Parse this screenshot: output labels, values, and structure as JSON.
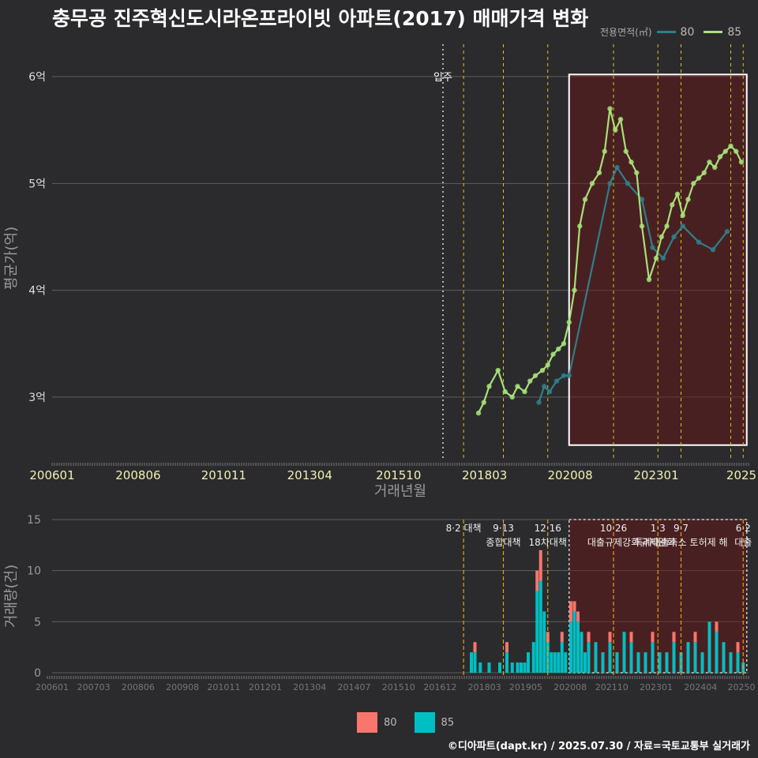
{
  "title": "충무공 진주혁신도시라온프라이빗 아파트(2017) 매매가격 변화",
  "legend": {
    "title": "전용면적(㎡)",
    "items": [
      {
        "label": "80",
        "color": "#2f7f8a"
      },
      {
        "label": "85",
        "color": "#a8e07a"
      }
    ]
  },
  "bottom_legend": [
    {
      "label": "80",
      "color": "#f8766d"
    },
    {
      "label": "85",
      "color": "#00bfc4"
    }
  ],
  "credit": "©디아파트(dapt.kr) / 2025.07.30 / 자료=국토교통부 실거래가",
  "chart_data": [
    {
      "type": "line",
      "title": "충무공 진주혁신도시라온프라이빗 아파트(2017) 매매가격 변화",
      "xlabel": "거래년월",
      "ylabel": "평균가(억)",
      "xlim": [
        2006.0,
        2025.6
      ],
      "ylim": [
        2.4,
        6.2
      ],
      "x_ticks": [
        {
          "v": 2006.0,
          "label": "200601"
        },
        {
          "v": 2008.42,
          "label": "200806"
        },
        {
          "v": 2010.83,
          "label": "201011"
        },
        {
          "v": 2013.25,
          "label": "201304"
        },
        {
          "v": 2015.75,
          "label": "201510"
        },
        {
          "v": 2018.17,
          "label": "201803"
        },
        {
          "v": 2020.58,
          "label": "202008"
        },
        {
          "v": 2023.0,
          "label": "202301"
        },
        {
          "v": 2025.4,
          "label": "2025"
        }
      ],
      "y_ticks": [
        {
          "v": 3,
          "label": "3억"
        },
        {
          "v": 4,
          "label": "4억"
        },
        {
          "v": 5,
          "label": "5억"
        },
        {
          "v": 6,
          "label": "6억"
        }
      ],
      "annotation": {
        "x": 2017.0,
        "label": "입주"
      },
      "policy_lines": [
        2017.58,
        2018.7,
        2019.95,
        2021.8,
        2023.05,
        2023.7,
        2025.1,
        2025.45
      ],
      "highlight": {
        "x0": 2020.55,
        "x1": 2025.55,
        "y0": 2.55,
        "y1": 6.02
      },
      "series": [
        {
          "name": "80",
          "color": "#2f7f8a",
          "x": [
            2019.7,
            2019.85,
            2020.0,
            2020.2,
            2020.4,
            2020.55,
            2021.7,
            2021.9,
            2022.2,
            2022.6,
            2022.9,
            2023.2,
            2023.5,
            2023.75,
            2024.2,
            2024.6,
            2025.0
          ],
          "y": [
            2.95,
            3.1,
            3.05,
            3.15,
            3.2,
            3.2,
            5.0,
            5.15,
            5.0,
            4.85,
            4.4,
            4.3,
            4.5,
            4.6,
            4.45,
            4.38,
            4.55
          ]
        },
        {
          "name": "85",
          "color": "#a8e07a",
          "x": [
            2018.0,
            2018.15,
            2018.3,
            2018.55,
            2018.75,
            2018.95,
            2019.1,
            2019.3,
            2019.45,
            2019.6,
            2019.8,
            2019.95,
            2020.1,
            2020.25,
            2020.4,
            2020.55,
            2020.7,
            2020.85,
            2021.0,
            2021.2,
            2021.4,
            2021.55,
            2021.7,
            2021.85,
            2022.0,
            2022.15,
            2022.3,
            2022.45,
            2022.6,
            2022.8,
            2023.0,
            2023.15,
            2023.3,
            2023.45,
            2023.6,
            2023.75,
            2023.9,
            2024.05,
            2024.2,
            2024.35,
            2024.5,
            2024.65,
            2024.8,
            2024.95,
            2025.1,
            2025.25,
            2025.4
          ],
          "y": [
            2.85,
            2.95,
            3.1,
            3.25,
            3.05,
            3.0,
            3.1,
            3.05,
            3.15,
            3.2,
            3.25,
            3.3,
            3.4,
            3.45,
            3.5,
            3.7,
            4.0,
            4.6,
            4.85,
            5.0,
            5.1,
            5.3,
            5.7,
            5.5,
            5.6,
            5.3,
            5.2,
            5.1,
            4.6,
            4.1,
            4.3,
            4.5,
            4.6,
            4.8,
            4.9,
            4.7,
            4.85,
            5.0,
            5.05,
            5.1,
            5.2,
            5.15,
            5.25,
            5.3,
            5.35,
            5.3,
            5.2
          ]
        }
      ]
    },
    {
      "type": "bar",
      "stacked": true,
      "xlabel": "",
      "ylabel": "거래량(건)",
      "xlim": [
        2006.0,
        2025.6
      ],
      "ylim": [
        0,
        15
      ],
      "x_ticks": [
        {
          "v": 2006.0,
          "label": "200601"
        },
        {
          "v": 2007.17,
          "label": "200703"
        },
        {
          "v": 2008.42,
          "label": "200806"
        },
        {
          "v": 2009.67,
          "label": "200908"
        },
        {
          "v": 2010.83,
          "label": "201011"
        },
        {
          "v": 2012.0,
          "label": "201201"
        },
        {
          "v": 2013.25,
          "label": "201304"
        },
        {
          "v": 2014.5,
          "label": "201407"
        },
        {
          "v": 2015.75,
          "label": "201510"
        },
        {
          "v": 2016.92,
          "label": "201612"
        },
        {
          "v": 2018.17,
          "label": "201803"
        },
        {
          "v": 2019.33,
          "label": "201905"
        },
        {
          "v": 2020.58,
          "label": "202008"
        },
        {
          "v": 2021.75,
          "label": "202110"
        },
        {
          "v": 2023.0,
          "label": "202301"
        },
        {
          "v": 2024.25,
          "label": "202404"
        },
        {
          "v": 2025.4,
          "label": "20250"
        }
      ],
      "y_ticks": [
        {
          "v": 0,
          "label": "0"
        },
        {
          "v": 5,
          "label": "5"
        },
        {
          "v": 10,
          "label": "10"
        },
        {
          "v": 15,
          "label": "15"
        }
      ],
      "x": [
        2017.8,
        2017.9,
        2018.05,
        2018.3,
        2018.6,
        2018.8,
        2018.95,
        2019.1,
        2019.2,
        2019.3,
        2019.4,
        2019.55,
        2019.65,
        2019.75,
        2019.85,
        2019.95,
        2020.05,
        2020.15,
        2020.25,
        2020.35,
        2020.45,
        2020.6,
        2020.7,
        2020.8,
        2020.9,
        2021.0,
        2021.1,
        2021.3,
        2021.5,
        2021.7,
        2021.9,
        2022.1,
        2022.3,
        2022.5,
        2022.7,
        2022.9,
        2023.1,
        2023.3,
        2023.5,
        2023.7,
        2023.9,
        2024.1,
        2024.3,
        2024.5,
        2024.7,
        2024.9,
        2025.1,
        2025.3,
        2025.45
      ],
      "series": [
        {
          "name": "80",
          "color": "#f8766d",
          "values": [
            0,
            1,
            0,
            0,
            0,
            1,
            0,
            0,
            0,
            0,
            0,
            0,
            2,
            3,
            0,
            1,
            0,
            0,
            0,
            1,
            0,
            2,
            1,
            1,
            0,
            0,
            1,
            0,
            0,
            1,
            0,
            0,
            1,
            0,
            0,
            1,
            0,
            0,
            1,
            0,
            0,
            1,
            0,
            0,
            1,
            0,
            0,
            1,
            0
          ]
        },
        {
          "name": "85",
          "color": "#00bfc4",
          "values": [
            2,
            2,
            1,
            1,
            1,
            2,
            1,
            1,
            1,
            1,
            2,
            3,
            8,
            9,
            6,
            3,
            2,
            2,
            2,
            3,
            2,
            5,
            6,
            5,
            4,
            2,
            3,
            3,
            2,
            3,
            2,
            4,
            3,
            2,
            2,
            3,
            2,
            2,
            3,
            2,
            3,
            3,
            2,
            5,
            4,
            3,
            2,
            2,
            1
          ]
        }
      ],
      "policy_lines": [
        {
          "x": 2017.58,
          "label1": "8·2 대책",
          "label2": ""
        },
        {
          "x": 2018.7,
          "label1": "9·13",
          "label2": "종합대책"
        },
        {
          "x": 2019.95,
          "label1": "12·16",
          "label2": "18차대책"
        },
        {
          "x": 2021.8,
          "label1": "10·26",
          "label2": "대출규제강화"
        },
        {
          "x": 2023.05,
          "label1": "1·3",
          "label2": "규제완화"
        },
        {
          "x": 2023.7,
          "label1": "9·7",
          "label2": "특례대출축소 토허제 해"
        },
        {
          "x": 2025.45,
          "label1": "6·2",
          "label2": "대출"
        }
      ],
      "highlight": {
        "x0": 2020.55,
        "x1": 2025.55
      }
    }
  ]
}
